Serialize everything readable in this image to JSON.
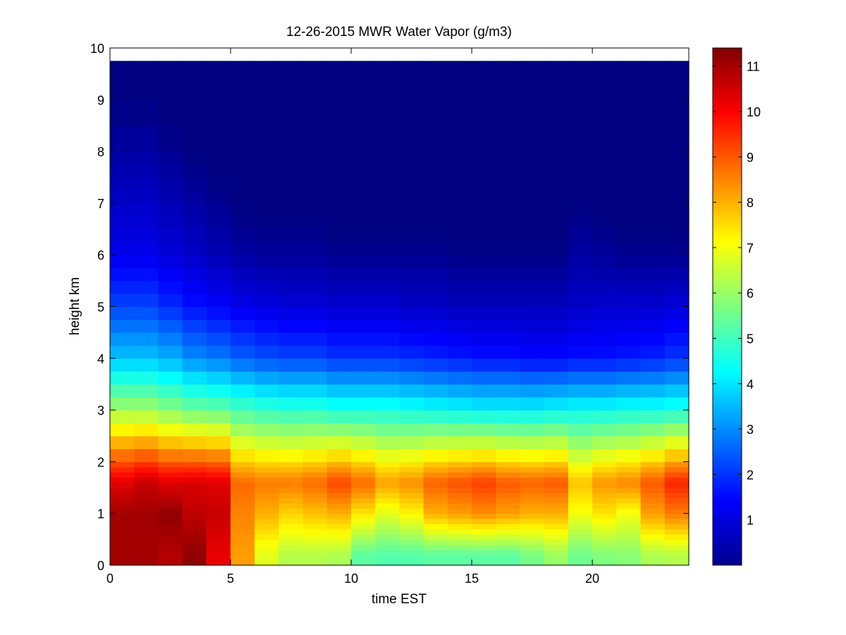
{
  "chart_data": {
    "type": "heatmap",
    "title": "12-26-2015 MWR Water Vapor (g/m3)",
    "xlabel": "time EST",
    "ylabel": "height km",
    "xlim": [
      0,
      24
    ],
    "ylim": [
      0,
      10
    ],
    "x_ticks": [
      "0",
      "5",
      "10",
      "15",
      "20"
    ],
    "y_ticks": [
      "0",
      "1",
      "2",
      "3",
      "4",
      "5",
      "6",
      "7",
      "8",
      "9",
      "10"
    ],
    "colormap": "jet",
    "clim": [
      0,
      11.4
    ],
    "colorbar_ticks": [
      "1",
      "2",
      "3",
      "4",
      "5",
      "6",
      "7",
      "8",
      "9",
      "10",
      "11"
    ],
    "x": [
      0.5,
      1.5,
      2.5,
      3.5,
      4.5,
      5.5,
      6.5,
      7.5,
      8.5,
      9.5,
      10.5,
      11.5,
      12.5,
      13.5,
      14.5,
      15.5,
      16.5,
      17.5,
      18.5,
      19.5,
      20.5,
      21.5,
      22.5,
      23.5
    ],
    "y_edges": [
      0,
      0.1,
      0.2,
      0.3,
      0.4,
      0.5,
      0.6,
      0.7,
      0.8,
      0.9,
      1.0,
      1.1,
      1.2,
      1.3,
      1.4,
      1.5,
      1.6,
      1.7,
      1.8,
      1.9,
      2.0,
      2.25,
      2.5,
      2.75,
      3.0,
      3.25,
      3.5,
      3.75,
      4.0,
      4.25,
      4.5,
      4.75,
      5.0,
      5.25,
      5.5,
      5.75,
      6.0,
      6.25,
      6.5,
      6.75,
      7.0,
      7.25,
      7.5,
      7.75,
      8.0,
      8.5,
      9.0,
      9.5,
      9.75
    ]
  },
  "colors": {
    "background": "#ffffff",
    "axis": "#000000",
    "colormap_low": "#00008f",
    "colormap_high": "#800000"
  }
}
